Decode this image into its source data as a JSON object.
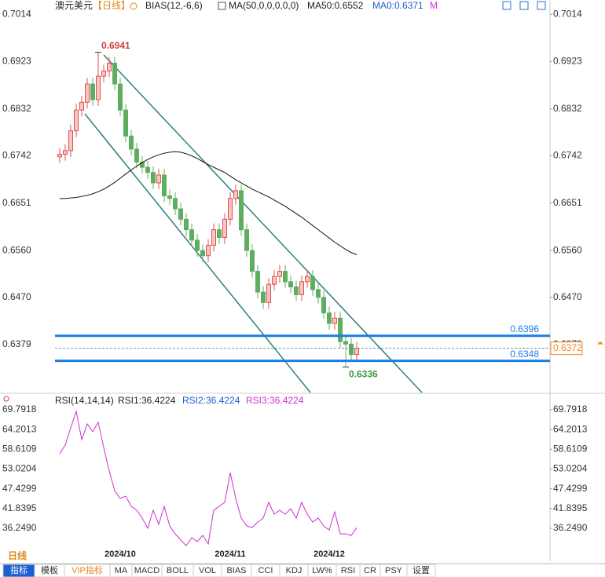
{
  "header": {
    "symbol": "澳元美元",
    "period": "【日线】",
    "bias": "BIAS(12,-6,6)",
    "ma": "MA(50,0,0,0,0,0)",
    "ma50": "MA50:0.6552",
    "ma0": "MA0:0.6371",
    "m": "M"
  },
  "chart_data": [
    {
      "type": "candlestick",
      "ylim": [
        0.6287,
        0.7034
      ],
      "yticks": [
        0.7014,
        0.6923,
        0.6832,
        0.6742,
        0.6651,
        {
          "value": 0.656,
          "label": "0.6560"
        },
        {
          "value": 0.647,
          "label": "0.6470"
        },
        0.6379
      ],
      "up_color": "#e0504c",
      "down_color": "#5fae5f",
      "open": [
        0.674,
        0.6745,
        0.6752,
        0.679,
        0.683,
        0.6845,
        0.688,
        0.685,
        0.6895,
        0.6905,
        0.692,
        0.688,
        0.683,
        0.678,
        0.6755,
        0.673,
        0.672,
        0.671,
        0.669,
        0.6705,
        0.6665,
        0.666,
        0.664,
        0.662,
        0.66,
        0.658,
        0.656,
        0.655,
        0.657,
        0.66,
        0.6585,
        0.662,
        0.666,
        0.6675,
        0.66,
        0.656,
        0.652,
        0.648,
        0.646,
        0.6495,
        0.651,
        0.652,
        0.65,
        0.649,
        0.6475,
        0.65,
        0.651,
        0.6485,
        0.647,
        0.644,
        0.642,
        0.643,
        0.6385,
        0.638,
        0.636
      ],
      "high": [
        0.6757,
        0.6764,
        0.6802,
        0.6842,
        0.6857,
        0.6892,
        0.6892,
        0.6941,
        0.6917,
        0.6932,
        0.6932,
        0.6892,
        0.6842,
        0.6792,
        0.6767,
        0.6742,
        0.6732,
        0.6722,
        0.6717,
        0.6717,
        0.6677,
        0.6672,
        0.6652,
        0.6632,
        0.6612,
        0.6592,
        0.6572,
        0.6582,
        0.6612,
        0.6612,
        0.6632,
        0.6672,
        0.6687,
        0.6687,
        0.6612,
        0.6572,
        0.6532,
        0.6492,
        0.6507,
        0.6522,
        0.6532,
        0.6532,
        0.6512,
        0.6502,
        0.6512,
        0.6522,
        0.6522,
        0.6497,
        0.6482,
        0.6452,
        0.6442,
        0.6442,
        0.6397,
        0.6392,
        0.6384
      ],
      "low": [
        0.6728,
        0.6733,
        0.674,
        0.6778,
        0.6818,
        0.6833,
        0.6838,
        0.6838,
        0.6883,
        0.6893,
        0.6868,
        0.6818,
        0.6768,
        0.6743,
        0.6718,
        0.6708,
        0.6698,
        0.6678,
        0.6678,
        0.6653,
        0.6648,
        0.6628,
        0.6608,
        0.6588,
        0.6568,
        0.6548,
        0.6538,
        0.6538,
        0.6558,
        0.6573,
        0.6573,
        0.6608,
        0.6648,
        0.6588,
        0.6548,
        0.6508,
        0.6468,
        0.6448,
        0.6448,
        0.6483,
        0.6498,
        0.6488,
        0.6478,
        0.6463,
        0.6463,
        0.6488,
        0.6473,
        0.6458,
        0.6428,
        0.6408,
        0.6408,
        0.6373,
        0.6336,
        0.6348,
        0.6348
      ],
      "close": [
        0.6745,
        0.6752,
        0.679,
        0.683,
        0.6845,
        0.688,
        0.685,
        0.6895,
        0.6905,
        0.692,
        0.688,
        0.683,
        0.678,
        0.6755,
        0.673,
        0.672,
        0.671,
        0.669,
        0.6705,
        0.6665,
        0.666,
        0.664,
        0.662,
        0.66,
        0.658,
        0.656,
        0.655,
        0.657,
        0.66,
        0.6585,
        0.662,
        0.666,
        0.6675,
        0.66,
        0.656,
        0.652,
        0.648,
        0.646,
        0.6495,
        0.651,
        0.652,
        0.65,
        0.649,
        0.6475,
        0.65,
        0.651,
        0.6485,
        0.647,
        0.644,
        0.642,
        0.643,
        0.6385,
        0.638,
        0.636,
        0.6372
      ],
      "series": [
        {
          "color": "#111111",
          "values": [
            0.666,
            0.666,
            0.6661,
            0.6662,
            0.6664,
            0.6666,
            0.6669,
            0.6673,
            0.6678,
            0.6684,
            0.6691,
            0.6699,
            0.6707,
            0.6715,
            0.6722,
            0.6729,
            0.6735,
            0.674,
            0.6744,
            0.6747,
            0.6749,
            0.675,
            0.6749,
            0.6746,
            0.6742,
            0.6737,
            0.6731,
            0.6725,
            0.672,
            0.6715,
            0.671,
            0.6703,
            0.6696,
            0.669,
            0.6684,
            0.6678,
            0.6673,
            0.6668,
            0.6663,
            0.6657,
            0.6651,
            0.6645,
            0.6638,
            0.6631,
            0.6624,
            0.6616,
            0.6608,
            0.66,
            0.6592,
            0.6584,
            0.6576,
            0.6569,
            0.6562,
            0.6556,
            0.6552
          ]
        }
      ],
      "max_label": 0.6941,
      "min_label": 0.6336,
      "hlines": [
        {
          "value": 0.6396,
          "color": "#1a7ee6"
        },
        {
          "value": 0.6348,
          "color": "#1a7ee6"
        }
      ],
      "last_price": 0.6372,
      "last_color": "#f08a24"
    },
    {
      "type": "line",
      "title": "RSI(14,14,14)",
      "legend": [
        "RSI1:36.4224",
        "RSI2:36.4224",
        "RSI3:36.4224"
      ],
      "ylim": [
        30.25,
        74.0
      ],
      "yticks": [
        69.7918,
        64.2013,
        58.6109,
        53.0204,
        47.4299,
        41.8395,
        {
          "value": 36.249,
          "label": "36.2490"
        }
      ],
      "categories": [
        null,
        null,
        null,
        null,
        null,
        null,
        null,
        null,
        null,
        null,
        null,
        "2024/10",
        null,
        null,
        null,
        null,
        null,
        null,
        null,
        null,
        null,
        null,
        null,
        null,
        null,
        null,
        null,
        null,
        null,
        null,
        null,
        "2024/11",
        null,
        null,
        null,
        null,
        null,
        null,
        null,
        null,
        null,
        null,
        null,
        null,
        null,
        null,
        null,
        null,
        null,
        "2024/12",
        null,
        null,
        null,
        null,
        null
      ],
      "series": [
        {
          "color": "#cc33cc",
          "values": [
            57.35,
            59.8,
            64.68,
            69.35,
            61.35,
            65.79,
            63.57,
            66.24,
            59.13,
            52.46,
            46.91,
            44.69,
            45.36,
            42.47,
            41.36,
            39.14,
            36.25,
            41.36,
            37.36,
            42.47,
            36.91,
            34.69,
            32.92,
            31.36,
            33.58,
            32.47,
            34.25,
            31.81,
            41.36,
            42.47,
            43.58,
            52.02,
            44.69,
            39.14,
            36.91,
            36.47,
            38.02,
            39.14,
            43.58,
            40.25,
            41.36,
            40.25,
            41.8,
            39.14,
            43.58,
            40.25,
            38.02,
            39.14,
            36.91,
            35.8,
            40.91,
            34.69,
            34.69,
            34.25,
            36.42
          ]
        }
      ]
    }
  ],
  "toolbar": {
    "period": "日线",
    "tabs": [
      "指标",
      "模板",
      "VIP指标",
      "MA",
      "MACD",
      "BOLL",
      "VOL",
      "BIAS",
      "CCI",
      "KDJ",
      "LW%",
      "RSI",
      "CR",
      "PSY",
      "设置"
    ]
  }
}
